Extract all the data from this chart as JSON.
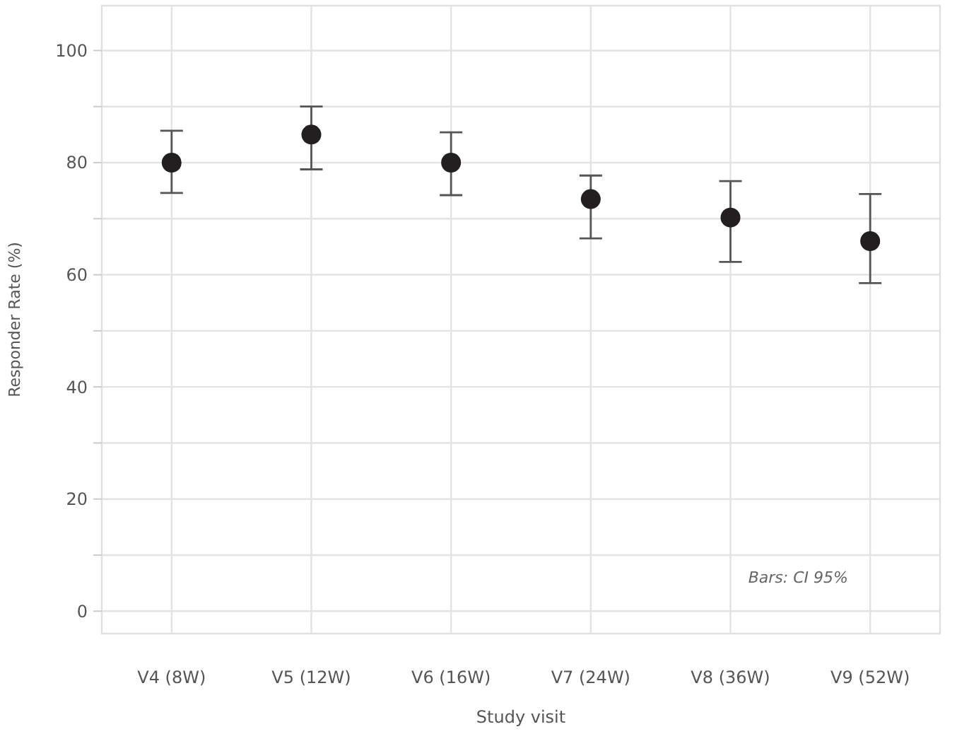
{
  "chart_data": {
    "type": "scatter",
    "xlabel": "Study visit",
    "ylabel": "Responder Rate (%)",
    "categories": [
      "V4 (8W)",
      "V5 (12W)",
      "V6 (16W)",
      "V7 (24W)",
      "V8 (36W)",
      "V9 (52W)"
    ],
    "values": [
      80,
      85,
      80,
      73.5,
      70.2,
      66
    ],
    "errors": [
      [
        74.6,
        85.7
      ],
      [
        78.8,
        90
      ],
      [
        74.2,
        85.4
      ],
      [
        66.5,
        77.7
      ],
      [
        62.3,
        76.7
      ],
      [
        58.5,
        74.4
      ]
    ],
    "color": "#231f20",
    "marker": "circle",
    "grid": true,
    "ylim": [
      -4,
      108
    ],
    "yticks": [
      0,
      {
        "value": 10,
        "label": null
      },
      20,
      {
        "value": 30,
        "label": null
      },
      40,
      {
        "value": 50,
        "label": null
      },
      60,
      {
        "value": 70,
        "label": null
      },
      80,
      {
        "value": 90,
        "label": null
      },
      100
    ],
    "annotations": [
      "Bars: CI 95%"
    ]
  }
}
